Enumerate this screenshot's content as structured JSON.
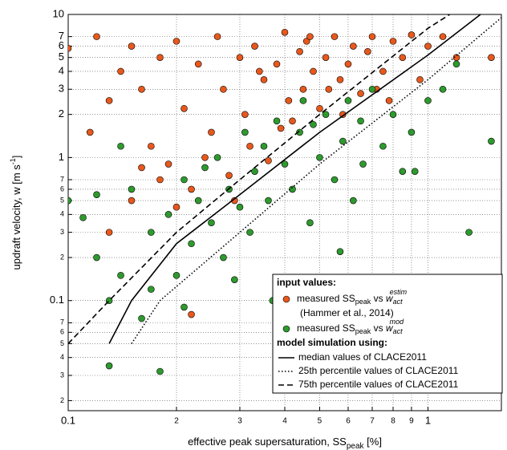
{
  "chart_data": {
    "type": "scatter",
    "x_label": [
      "effective peak supersaturation, SS",
      "peak",
      " [%]"
    ],
    "y_label": [
      "updraft velocity, w [m s",
      "-1",
      "]"
    ],
    "xscale": "log",
    "yscale": "log",
    "grid": true,
    "xlim": [
      0.1,
      1.6
    ],
    "ylim": [
      0.017,
      10
    ],
    "xticks": [
      0.1,
      {
        "value": 0.2,
        "label": "2"
      },
      {
        "value": 0.3,
        "label": "3"
      },
      {
        "value": 0.4,
        "label": "4"
      },
      {
        "value": 0.5,
        "label": "5"
      },
      {
        "value": 0.6,
        "label": "6"
      },
      {
        "value": 0.7,
        "label": "7"
      },
      {
        "value": 0.8,
        "label": "8"
      },
      {
        "value": 0.9,
        "label": "9"
      },
      1
    ],
    "yticks": [
      {
        "value": 0.02,
        "label": "2"
      },
      {
        "value": 0.03,
        "label": "3"
      },
      {
        "value": 0.04,
        "label": "4"
      },
      {
        "value": 0.05,
        "label": "5"
      },
      {
        "value": 0.06,
        "label": "6"
      },
      {
        "value": 0.07,
        "label": "7"
      },
      0.1,
      {
        "value": 0.2,
        "label": "2"
      },
      {
        "value": 0.3,
        "label": "3"
      },
      {
        "value": 0.4,
        "label": "4"
      },
      {
        "value": 0.5,
        "label": "5"
      },
      {
        "value": 0.6,
        "label": "6"
      },
      {
        "value": 0.7,
        "label": "7"
      },
      1,
      2,
      3,
      4,
      5,
      6,
      7,
      10
    ],
    "legend": {
      "input_heading": "input values:",
      "model_heading": "model simulation using:",
      "entries": [
        [
          "measured SS",
          "peak",
          " vs ",
          "w",
          "act",
          "estim"
        ],
        [
          "measured SS",
          "peak",
          " vs ",
          "w",
          "act",
          "mod"
        ]
      ],
      "citation": "(Hammer et al., 2014)"
    },
    "series": [
      {
        "kind": "points",
        "color": "#e8581c",
        "x": [
          0.1,
          0.12,
          0.13,
          0.14,
          0.15,
          0.16,
          0.17,
          0.18,
          0.19,
          0.2,
          0.21,
          0.22,
          0.23,
          0.25,
          0.26,
          0.27,
          0.28,
          0.3,
          0.31,
          0.32,
          0.33,
          0.35,
          0.36,
          0.38,
          0.4,
          0.41,
          0.42,
          0.44,
          0.45,
          0.46,
          0.48,
          0.5,
          0.52,
          0.55,
          0.57,
          0.6,
          0.62,
          0.65,
          0.68,
          0.7,
          0.75,
          0.8,
          0.85,
          0.9,
          1.0,
          1.1,
          1.2,
          1.5,
          0.115,
          0.13,
          0.15,
          0.18,
          0.22,
          0.24,
          0.29,
          0.34,
          0.39,
          0.47,
          0.53,
          0.58,
          0.72,
          0.78,
          0.95,
          0.16,
          0.2
        ],
        "values": [
          5.8,
          7,
          2.5,
          4,
          6,
          3,
          1.2,
          5,
          0.9,
          6.5,
          2.2,
          0.6,
          4.5,
          1.5,
          7,
          3,
          0.75,
          5,
          2,
          1.2,
          6,
          3.5,
          0.95,
          4.5,
          7.5,
          2.5,
          1.8,
          5.5,
          3,
          6.5,
          4,
          2.2,
          5,
          7,
          3.5,
          4.5,
          6,
          2.8,
          5.5,
          7,
          4,
          6.5,
          5,
          7.2,
          6,
          7,
          5,
          5,
          1.5,
          0.3,
          0.5,
          0.7,
          0.08,
          1,
          0.5,
          4,
          1.6,
          7,
          3,
          2,
          3,
          2.5,
          3.5,
          0.85,
          0.45
        ]
      },
      {
        "kind": "points",
        "color": "#2e9a2e",
        "x": [
          0.1,
          0.11,
          0.12,
          0.13,
          0.13,
          0.14,
          0.15,
          0.16,
          0.17,
          0.18,
          0.19,
          0.2,
          0.21,
          0.22,
          0.23,
          0.25,
          0.26,
          0.27,
          0.28,
          0.3,
          0.31,
          0.32,
          0.33,
          0.35,
          0.36,
          0.38,
          0.4,
          0.42,
          0.44,
          0.45,
          0.47,
          0.5,
          0.52,
          0.55,
          0.58,
          0.6,
          0.62,
          0.65,
          0.7,
          0.75,
          0.8,
          0.85,
          0.9,
          1.0,
          1.1,
          1.2,
          1.5,
          1.3,
          0.12,
          0.14,
          0.17,
          0.21,
          0.29,
          0.37,
          0.24,
          0.48,
          0.66,
          0.92,
          0.57
        ],
        "values": [
          0.5,
          0.38,
          0.2,
          0.1,
          0.035,
          1.2,
          0.6,
          0.075,
          0.3,
          0.032,
          0.4,
          0.15,
          0.7,
          0.25,
          0.5,
          0.35,
          1,
          0.2,
          0.6,
          0.45,
          1.5,
          0.3,
          0.8,
          1.2,
          0.5,
          1.8,
          0.9,
          0.6,
          1.5,
          2.5,
          0.35,
          1,
          2,
          0.7,
          1.3,
          2.5,
          0.5,
          1.8,
          3,
          1.2,
          2,
          0.8,
          1.5,
          2.5,
          3,
          4.5,
          1.3,
          0.3,
          0.55,
          0.15,
          0.12,
          0.09,
          0.14,
          0.1,
          0.85,
          1.7,
          0.9,
          0.8,
          0.22
        ]
      },
      {
        "kind": "line",
        "name": "median values of CLACE2011",
        "dash": "none",
        "color": "#000000",
        "x": [
          0.13,
          0.15,
          0.2,
          0.3,
          0.5,
          1,
          1.4
        ],
        "values": [
          0.05,
          0.1,
          0.25,
          0.55,
          1.5,
          5.2,
          10
        ]
      },
      {
        "kind": "line",
        "name": "25th percentile values of CLACE2011",
        "dash": "1.5 2.5",
        "color": "#000000",
        "x": [
          0.15,
          0.18,
          0.3,
          0.5,
          1,
          1.6
        ],
        "values": [
          0.05,
          0.1,
          0.3,
          0.9,
          3.5,
          9.5
        ]
      },
      {
        "kind": "line",
        "name": "75th percentile values of CLACE2011",
        "dash": "7 4",
        "color": "#000000",
        "x": [
          0.1,
          0.13,
          0.2,
          0.3,
          0.5,
          1,
          1.15
        ],
        "values": [
          0.05,
          0.1,
          0.3,
          0.7,
          2,
          8,
          10
        ]
      }
    ]
  }
}
